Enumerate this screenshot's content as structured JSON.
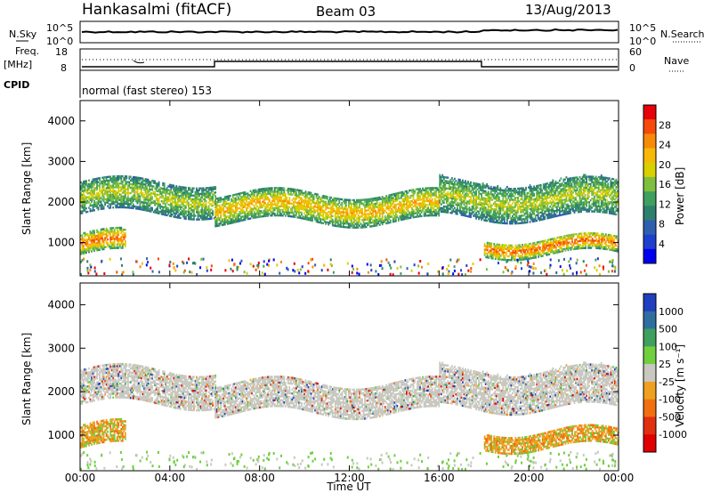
{
  "header": {
    "station": "Hankasalmi (fitACF)",
    "beam": "Beam 03",
    "date": "13/Aug/2013"
  },
  "top_panels": {
    "nsky_label": "N.Sky",
    "nsearch_label": "N.Search",
    "noise_ticks": [
      "10^5",
      "10^0"
    ],
    "freq_label_1": "Freq.",
    "freq_label_2": "[MHz]",
    "freq_ticks": [
      "18",
      "8"
    ],
    "nave_label": "Nave",
    "nave_ticks": [
      "60",
      "0"
    ],
    "cpid_label": "CPID",
    "cpid_text": "normal (fast stereo) 153"
  },
  "power_scale": {
    "label": "Power [dB]",
    "ticks": [
      "28",
      "24",
      "20",
      "16",
      "12",
      "8",
      "4"
    ],
    "colors": [
      "#e8000a",
      "#f54a0a",
      "#f88a0a",
      "#f7b808",
      "#d9d000",
      "#7fbf3f",
      "#3f9f5f",
      "#2f7f6f",
      "#2f5faf",
      "#1f3fcf",
      "#0000f0"
    ]
  },
  "velocity_scale": {
    "label": "Velocity [m s⁻¹]",
    "ticks": [
      "1000",
      "500",
      "100",
      "25",
      "-25",
      "-100",
      "-500",
      "-1000"
    ],
    "colors": [
      "#1f3fbf",
      "#2f6fa0",
      "#3f9f5f",
      "#6fcf3f",
      "#c8c8c0",
      "#f0a020",
      "#f07010",
      "#e03010",
      "#e00000"
    ]
  },
  "chart_data": {
    "type": "heatmap",
    "xlabel": "Time UT",
    "ylabel": "Slant Range [km]",
    "x_ticks": [
      "00:00",
      "04:00",
      "08:00",
      "12:00",
      "16:00",
      "20:00",
      "00:00"
    ],
    "y_ticks": [
      "4000",
      "3000",
      "2000",
      "1000"
    ],
    "xlim": [
      0,
      24
    ],
    "ylim": [
      180,
      4500
    ],
    "backscatter_bands": [
      {
        "t": [
          0,
          2
        ],
        "range_km": [
          700,
          1200
        ],
        "power_db": 24
      },
      {
        "t": [
          0,
          6
        ],
        "range_km": [
          1700,
          2500
        ],
        "power_db": 16
      },
      {
        "t": [
          6,
          16
        ],
        "range_km": [
          1500,
          2200
        ],
        "power_db": 20
      },
      {
        "t": [
          16,
          24
        ],
        "range_km": [
          1600,
          2500
        ],
        "power_db": 16
      },
      {
        "t": [
          18,
          24
        ],
        "range_km": [
          700,
          1100
        ],
        "power_db": 24
      }
    ]
  }
}
